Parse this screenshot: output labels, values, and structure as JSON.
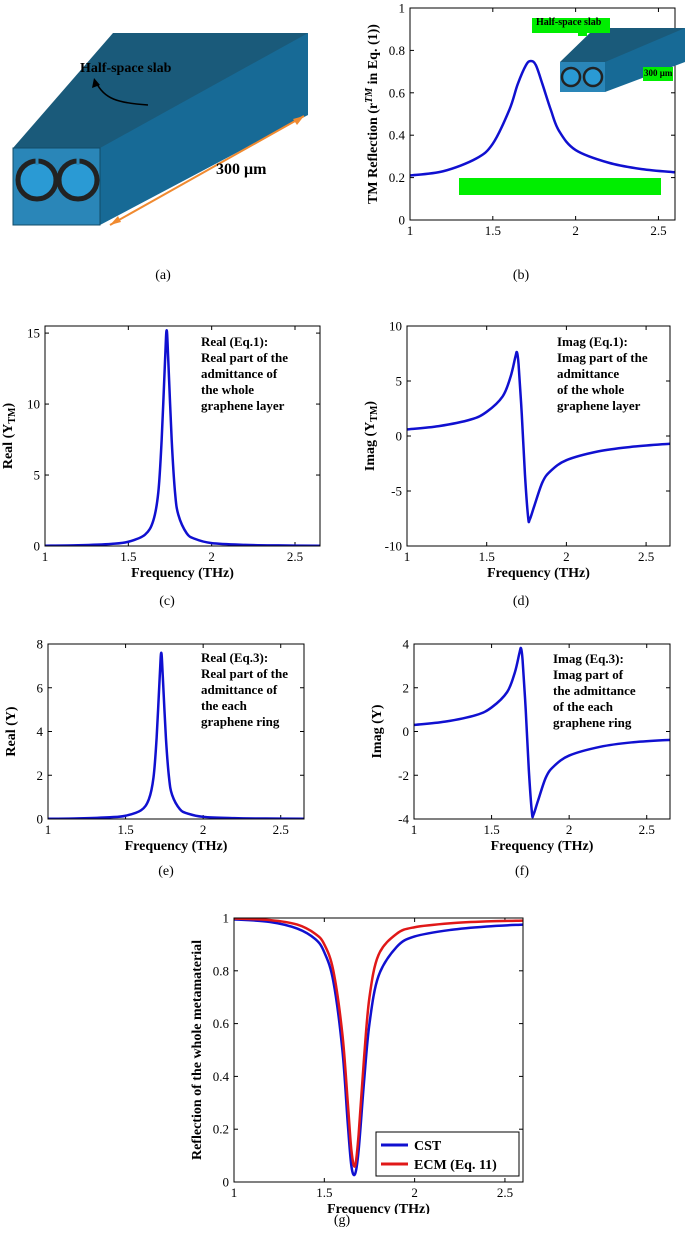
{
  "figure": {
    "panel_labels": [
      "(a)",
      "(b)",
      "(c)",
      "(d)",
      "(e)",
      "(f)",
      "(g)"
    ],
    "diagram_a": {
      "slab_label": "Half-space slab",
      "length_label": "300 μm",
      "colors": {
        "top": "#1a5a7a",
        "front_face": "#2a86b8",
        "side": "#176a96",
        "arrow": "#f08a30"
      }
    },
    "inset_b": {
      "slab_label": "Half-space slab",
      "length_label": "300 μm"
    },
    "annotations": {
      "c": [
        "Real (Eq.1):",
        "Real part of the",
        "admittance of",
        "the whole",
        "graphene layer"
      ],
      "d": [
        "Imag (Eq.1):",
        "Imag part of the",
        "admittance",
        "of the whole",
        "graphene layer"
      ],
      "e": [
        "Real (Eq.3):",
        "Real part of the",
        "admittance of",
        "the each",
        "graphene ring"
      ],
      "f": [
        "Imag (Eq.3):",
        "Imag part of",
        "the admittance",
        "of the each",
        "graphene ring"
      ]
    },
    "highlight_color": "#00ee00",
    "line_color": "#1010d0"
  },
  "chart_data": [
    {
      "id": "b",
      "type": "line",
      "xlabel": "Frequency (THz)",
      "ylabel": "TM Reflection (r",
      "ylabel_sup": "TM",
      "ylabel_tail": " in Eq. (1))",
      "xlim": [
        1,
        2.6
      ],
      "ylim": [
        0,
        1
      ],
      "xticks": [
        1,
        1.5,
        2,
        2.5
      ],
      "yticks": [
        0,
        0.2,
        0.4,
        0.6,
        0.8,
        1
      ],
      "series": [
        {
          "color": "#1010d0",
          "x": [
            1,
            1.2,
            1.4,
            1.5,
            1.6,
            1.65,
            1.7,
            1.73,
            1.76,
            1.8,
            1.85,
            1.9,
            2.0,
            2.2,
            2.4,
            2.6
          ],
          "y": [
            0.21,
            0.23,
            0.29,
            0.36,
            0.52,
            0.64,
            0.73,
            0.75,
            0.73,
            0.64,
            0.52,
            0.42,
            0.33,
            0.27,
            0.24,
            0.225
          ]
        }
      ]
    },
    {
      "id": "c",
      "type": "line",
      "xlabel": "Frequency (THz)",
      "ylabel": "Real (Y",
      "ylabel_sub": "TM",
      "ylabel_tail": ")",
      "xlim": [
        1,
        2.65
      ],
      "ylim": [
        0,
        15.5
      ],
      "xticks": [
        1,
        1.5,
        2,
        2.5
      ],
      "yticks": [
        0,
        5,
        10,
        15
      ],
      "series": [
        {
          "color": "#1010d0",
          "x": [
            1,
            1.2,
            1.4,
            1.5,
            1.6,
            1.65,
            1.68,
            1.7,
            1.72,
            1.73,
            1.74,
            1.76,
            1.78,
            1.8,
            1.85,
            1.9,
            2.0,
            2.2,
            2.4,
            2.65
          ],
          "y": [
            0.02,
            0.05,
            0.15,
            0.3,
            0.8,
            1.8,
            3.8,
            7.5,
            13.0,
            15.2,
            13.0,
            7.5,
            3.8,
            2.2,
            0.9,
            0.5,
            0.2,
            0.08,
            0.04,
            0.02
          ]
        }
      ]
    },
    {
      "id": "d",
      "type": "line",
      "xlabel": "Frequency (THz)",
      "ylabel": "Imag (Y",
      "ylabel_sub": "TM",
      "ylabel_tail": ")",
      "xlim": [
        1,
        2.65
      ],
      "ylim": [
        -10,
        10
      ],
      "xticks": [
        1,
        1.5,
        2,
        2.5
      ],
      "yticks": [
        -10,
        -5,
        0,
        5,
        10
      ],
      "series": [
        {
          "color": "#1010d0",
          "x": [
            1,
            1.2,
            1.4,
            1.5,
            1.6,
            1.65,
            1.68,
            1.69,
            1.7,
            1.72,
            1.74,
            1.76,
            1.77,
            1.8,
            1.85,
            1.9,
            2.0,
            2.2,
            2.4,
            2.65
          ],
          "y": [
            0.6,
            0.9,
            1.5,
            2.2,
            3.6,
            5.4,
            7.2,
            7.6,
            6.5,
            2.0,
            -3.5,
            -7.4,
            -7.6,
            -6.3,
            -4.2,
            -3.2,
            -2.2,
            -1.4,
            -1.0,
            -0.7
          ]
        }
      ]
    },
    {
      "id": "e",
      "type": "line",
      "xlabel": "Frequency (THz)",
      "ylabel": "Real (Y)",
      "xlim": [
        1,
        2.65
      ],
      "ylim": [
        0,
        8
      ],
      "xticks": [
        1,
        1.5,
        2,
        2.5
      ],
      "yticks": [
        0,
        2,
        4,
        6,
        8
      ],
      "series": [
        {
          "color": "#1010d0",
          "x": [
            1,
            1.2,
            1.4,
            1.5,
            1.6,
            1.65,
            1.68,
            1.7,
            1.72,
            1.73,
            1.74,
            1.76,
            1.78,
            1.8,
            1.85,
            1.9,
            2.0,
            2.2,
            2.4,
            2.65
          ],
          "y": [
            0.01,
            0.03,
            0.08,
            0.15,
            0.4,
            0.9,
            1.9,
            3.7,
            6.5,
            7.6,
            6.5,
            3.7,
            1.9,
            1.1,
            0.45,
            0.25,
            0.1,
            0.04,
            0.02,
            0.01
          ]
        }
      ]
    },
    {
      "id": "f",
      "type": "line",
      "xlabel": "Frequency (THz)",
      "ylabel": "Imag (Y)",
      "xlim": [
        1,
        2.65
      ],
      "ylim": [
        -4,
        4
      ],
      "xticks": [
        1,
        1.5,
        2,
        2.5
      ],
      "yticks": [
        -4,
        -2,
        0,
        2,
        4
      ],
      "series": [
        {
          "color": "#1010d0",
          "x": [
            1,
            1.2,
            1.4,
            1.5,
            1.6,
            1.65,
            1.68,
            1.69,
            1.7,
            1.72,
            1.74,
            1.76,
            1.77,
            1.8,
            1.85,
            1.9,
            2.0,
            2.2,
            2.4,
            2.65
          ],
          "y": [
            0.3,
            0.45,
            0.75,
            1.1,
            1.8,
            2.7,
            3.6,
            3.8,
            3.25,
            1.0,
            -1.75,
            -3.7,
            -3.8,
            -3.15,
            -2.1,
            -1.6,
            -1.1,
            -0.7,
            -0.5,
            -0.38
          ]
        }
      ]
    },
    {
      "id": "g",
      "type": "line",
      "xlabel": "Frequency (THz)",
      "ylabel": "Reflection of the whole metamaterial",
      "xlim": [
        1,
        2.6
      ],
      "ylim": [
        0,
        1
      ],
      "xticks": [
        1,
        1.5,
        2,
        2.5
      ],
      "yticks": [
        0,
        0.2,
        0.4,
        0.6,
        0.8,
        1
      ],
      "legend": "bottom-right",
      "series": [
        {
          "name": "CST",
          "color": "#1010d0",
          "x": [
            1,
            1.2,
            1.35,
            1.45,
            1.5,
            1.55,
            1.6,
            1.63,
            1.65,
            1.67,
            1.69,
            1.72,
            1.75,
            1.8,
            1.9,
            2.0,
            2.2,
            2.4,
            2.6
          ],
          "y": [
            0.995,
            0.985,
            0.96,
            0.92,
            0.87,
            0.76,
            0.5,
            0.22,
            0.06,
            0.03,
            0.12,
            0.38,
            0.6,
            0.78,
            0.89,
            0.93,
            0.955,
            0.968,
            0.975
          ]
        },
        {
          "name": "ECM (Eq. 11)",
          "color": "#e01818",
          "x": [
            1,
            1.2,
            1.35,
            1.45,
            1.5,
            1.55,
            1.6,
            1.63,
            1.65,
            1.67,
            1.69,
            1.72,
            1.75,
            1.8,
            1.9,
            2.0,
            2.2,
            2.4,
            2.6
          ],
          "y": [
            0.998,
            0.992,
            0.975,
            0.94,
            0.9,
            0.8,
            0.56,
            0.3,
            0.12,
            0.06,
            0.18,
            0.47,
            0.7,
            0.86,
            0.94,
            0.965,
            0.98,
            0.987,
            0.99
          ]
        }
      ]
    }
  ]
}
